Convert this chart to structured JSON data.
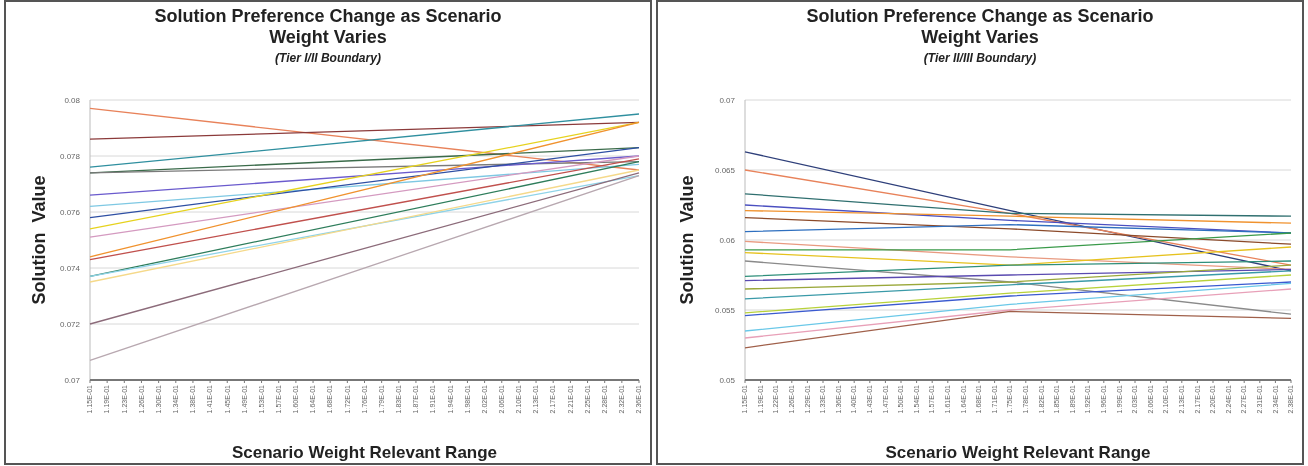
{
  "chart_data": [
    {
      "type": "line",
      "title": "Solution Preference Change as Scenario Weight Varies",
      "subtitle": "(Tier I/II Boundary)",
      "xlabel": "Scenario Weight Relevant Range",
      "ylabel": "Solution  Value",
      "xlim": [
        0.115,
        0.236
      ],
      "ylim": [
        0.07,
        0.08
      ],
      "yticks": [
        0.07,
        0.072,
        0.074,
        0.076,
        0.078,
        0.08
      ],
      "grid": "y",
      "xticks": [
        {
          "value": 0.115,
          "label": "1.15E-01"
        },
        {
          "value": 0.11878,
          "label": "1.19E-01"
        },
        {
          "value": 0.12256,
          "label": "1.23E-01"
        },
        {
          "value": 0.12634,
          "label": "1.26E-01"
        },
        {
          "value": 0.13013,
          "label": "1.30E-01"
        },
        {
          "value": 0.13391,
          "label": "1.34E-01"
        },
        {
          "value": 0.13769,
          "label": "1.38E-01"
        },
        {
          "value": 0.14147,
          "label": "1.41E-01"
        },
        {
          "value": 0.14525,
          "label": "1.45E-01"
        },
        {
          "value": 0.14903,
          "label": "1.49E-01"
        },
        {
          "value": 0.15281,
          "label": "1.53E-01"
        },
        {
          "value": 0.15659,
          "label": "1.57E-01"
        },
        {
          "value": 0.16038,
          "label": "1.60E-01"
        },
        {
          "value": 0.16416,
          "label": "1.64E-01"
        },
        {
          "value": 0.16794,
          "label": "1.68E-01"
        },
        {
          "value": 0.17172,
          "label": "1.72E-01"
        },
        {
          "value": 0.1755,
          "label": "1.76E-01"
        },
        {
          "value": 0.17928,
          "label": "1.79E-01"
        },
        {
          "value": 0.18306,
          "label": "1.83E-01"
        },
        {
          "value": 0.18684,
          "label": "1.87E-01"
        },
        {
          "value": 0.19063,
          "label": "1.91E-01"
        },
        {
          "value": 0.19441,
          "label": "1.94E-01"
        },
        {
          "value": 0.19819,
          "label": "1.98E-01"
        },
        {
          "value": 0.20197,
          "label": "2.02E-01"
        },
        {
          "value": 0.20575,
          "label": "2.06E-01"
        },
        {
          "value": 0.20953,
          "label": "2.10E-01"
        },
        {
          "value": 0.21331,
          "label": "2.13E-01"
        },
        {
          "value": 0.21709,
          "label": "2.17E-01"
        },
        {
          "value": 0.22088,
          "label": "2.21E-01"
        },
        {
          "value": 0.22466,
          "label": "2.25E-01"
        },
        {
          "value": 0.22844,
          "label": "2.28E-01"
        },
        {
          "value": 0.23222,
          "label": "2.32E-01"
        },
        {
          "value": 0.236,
          "label": "2.36E-01"
        }
      ],
      "series": [
        {
          "color": "#e8825a",
          "x": [
            0.115,
            0.236
          ],
          "values": [
            0.0797,
            0.0775
          ]
        },
        {
          "color": "#8b3a3a",
          "x": [
            0.115,
            0.236
          ],
          "values": [
            0.0786,
            0.0792
          ]
        },
        {
          "color": "#2f8f9f",
          "x": [
            0.115,
            0.236
          ],
          "values": [
            0.0776,
            0.0795
          ]
        },
        {
          "color": "#3a6b4a",
          "x": [
            0.115,
            0.236
          ],
          "values": [
            0.0774,
            0.0783
          ]
        },
        {
          "color": "#7a7a7a",
          "x": [
            0.115,
            0.236
          ],
          "values": [
            0.0774,
            0.0778
          ]
        },
        {
          "color": "#6a5acd",
          "x": [
            0.115,
            0.236
          ],
          "values": [
            0.0766,
            0.078
          ]
        },
        {
          "color": "#7ec8e3",
          "x": [
            0.115,
            0.236
          ],
          "values": [
            0.0762,
            0.0777
          ]
        },
        {
          "color": "#2e4fa3",
          "x": [
            0.115,
            0.236
          ],
          "values": [
            0.0758,
            0.0783
          ]
        },
        {
          "color": "#e6d21e",
          "x": [
            0.115,
            0.236
          ],
          "values": [
            0.0754,
            0.0792
          ]
        },
        {
          "color": "#d49ac0",
          "x": [
            0.115,
            0.236
          ],
          "values": [
            0.0751,
            0.078
          ]
        },
        {
          "color": "#f0922e",
          "x": [
            0.115,
            0.236
          ],
          "values": [
            0.0744,
            0.0792
          ]
        },
        {
          "color": "#c0504d",
          "x": [
            0.115,
            0.236
          ],
          "values": [
            0.0743,
            0.0779
          ]
        },
        {
          "color": "#2e7d5b",
          "x": [
            0.115,
            0.236
          ],
          "values": [
            0.0737,
            0.0778
          ]
        },
        {
          "color": "#8fd3e8",
          "x": [
            0.115,
            0.236
          ],
          "values": [
            0.0737,
            0.0773
          ]
        },
        {
          "color": "#f5d98a",
          "x": [
            0.115,
            0.236
          ],
          "values": [
            0.0735,
            0.0775
          ]
        },
        {
          "color": "#8c6b7a",
          "x": [
            0.115,
            0.236
          ],
          "values": [
            0.072,
            0.0774
          ]
        },
        {
          "color": "#b8a8b0",
          "x": [
            0.115,
            0.236
          ],
          "values": [
            0.0707,
            0.0773
          ]
        }
      ]
    },
    {
      "type": "line",
      "title": "Solution Preference Change as Scenario Weight Varies",
      "subtitle": "(Tier II/III Boundary)",
      "xlabel": "Scenario Weight Relevant Range",
      "ylabel": "Solution  Value",
      "xlim": [
        0.115,
        0.2375
      ],
      "ylim": [
        0.05,
        0.07
      ],
      "yticks": [
        0.05,
        0.055,
        0.06,
        0.065,
        0.07
      ],
      "grid": "y",
      "xticks": [
        {
          "value": 0.115,
          "label": "1.15E-01"
        },
        {
          "value": 0.1185,
          "label": "1.19E-01"
        },
        {
          "value": 0.122,
          "label": "1.22E-01"
        },
        {
          "value": 0.1255,
          "label": "1.26E-01"
        },
        {
          "value": 0.129,
          "label": "1.29E-01"
        },
        {
          "value": 0.1325,
          "label": "1.33E-01"
        },
        {
          "value": 0.136,
          "label": "1.36E-01"
        },
        {
          "value": 0.1395,
          "label": "1.40E-01"
        },
        {
          "value": 0.143,
          "label": "1.43E-01"
        },
        {
          "value": 0.1465,
          "label": "1.47E-01"
        },
        {
          "value": 0.15,
          "label": "1.50E-01"
        },
        {
          "value": 0.1535,
          "label": "1.54E-01"
        },
        {
          "value": 0.157,
          "label": "1.57E-01"
        },
        {
          "value": 0.1605,
          "label": "1.61E-01"
        },
        {
          "value": 0.164,
          "label": "1.64E-01"
        },
        {
          "value": 0.1675,
          "label": "1.68E-01"
        },
        {
          "value": 0.171,
          "label": "1.71E-01"
        },
        {
          "value": 0.1745,
          "label": "1.75E-01"
        },
        {
          "value": 0.178,
          "label": "1.78E-01"
        },
        {
          "value": 0.1815,
          "label": "1.82E-01"
        },
        {
          "value": 0.185,
          "label": "1.85E-01"
        },
        {
          "value": 0.1885,
          "label": "1.89E-01"
        },
        {
          "value": 0.192,
          "label": "1.92E-01"
        },
        {
          "value": 0.1955,
          "label": "1.96E-01"
        },
        {
          "value": 0.199,
          "label": "1.99E-01"
        },
        {
          "value": 0.2025,
          "label": "2.03E-01"
        },
        {
          "value": 0.206,
          "label": "2.06E-01"
        },
        {
          "value": 0.2095,
          "label": "2.10E-01"
        },
        {
          "value": 0.213,
          "label": "2.13E-01"
        },
        {
          "value": 0.2165,
          "label": "2.17E-01"
        },
        {
          "value": 0.22,
          "label": "2.20E-01"
        },
        {
          "value": 0.2235,
          "label": "2.24E-01"
        },
        {
          "value": 0.227,
          "label": "2.27E-01"
        },
        {
          "value": 0.2305,
          "label": "2.31E-01"
        },
        {
          "value": 0.234,
          "label": "2.34E-01"
        },
        {
          "value": 0.2375,
          "label": "2.38E-01"
        }
      ],
      "series": [
        {
          "color": "#2e3f7a",
          "x": [
            0.115,
            0.1745,
            0.2375
          ],
          "values": [
            0.0663,
            0.0621,
            0.0578
          ]
        },
        {
          "color": "#e8825a",
          "x": [
            0.115,
            0.1745,
            0.2375
          ],
          "values": [
            0.065,
            0.0619,
            0.0582
          ]
        },
        {
          "color": "#2f6f6f",
          "x": [
            0.115,
            0.1745,
            0.2375
          ],
          "values": [
            0.0633,
            0.0619,
            0.0617
          ]
        },
        {
          "color": "#4a4fc0",
          "x": [
            0.115,
            0.1745,
            0.2375
          ],
          "values": [
            0.0625,
            0.0614,
            0.0605
          ]
        },
        {
          "color": "#f0922e",
          "x": [
            0.115,
            0.1745,
            0.2375
          ],
          "values": [
            0.0621,
            0.0617,
            0.0612
          ]
        },
        {
          "color": "#8b4a2a",
          "x": [
            0.115,
            0.1745,
            0.2375
          ],
          "values": [
            0.0616,
            0.0608,
            0.0597
          ]
        },
        {
          "color": "#2e6fbf",
          "x": [
            0.115,
            0.1745,
            0.2375
          ],
          "values": [
            0.0606,
            0.0611,
            0.0605
          ]
        },
        {
          "color": "#e89a80",
          "x": [
            0.115,
            0.1745,
            0.2375
          ],
          "values": [
            0.0599,
            0.0588,
            0.0579
          ]
        },
        {
          "color": "#3a9a4a",
          "x": [
            0.115,
            0.1745,
            0.2375
          ],
          "values": [
            0.0593,
            0.0593,
            0.0605
          ]
        },
        {
          "color": "#e6c21e",
          "x": [
            0.115,
            0.1745,
            0.2375
          ],
          "values": [
            0.0591,
            0.0582,
            0.0595
          ]
        },
        {
          "color": "#8a8a8a",
          "x": [
            0.115,
            0.1745,
            0.2375
          ],
          "values": [
            0.0585,
            0.057,
            0.0547
          ]
        },
        {
          "color": "#2e8f7a",
          "x": [
            0.115,
            0.1745,
            0.2375
          ],
          "values": [
            0.0574,
            0.0582,
            0.0585
          ]
        },
        {
          "color": "#5a4ab0",
          "x": [
            0.115,
            0.1745,
            0.2375
          ],
          "values": [
            0.0571,
            0.0575,
            0.0579
          ]
        },
        {
          "color": "#9aa83a",
          "x": [
            0.115,
            0.1745,
            0.2375
          ],
          "values": [
            0.0565,
            0.057,
            0.0582
          ]
        },
        {
          "color": "#3a9aa8",
          "x": [
            0.115,
            0.1745,
            0.2375
          ],
          "values": [
            0.0558,
            0.0568,
            0.0578
          ]
        },
        {
          "color": "#b8d23a",
          "x": [
            0.115,
            0.1745,
            0.2375
          ],
          "values": [
            0.0548,
            0.0562,
            0.0575
          ]
        },
        {
          "color": "#3a5ad0",
          "x": [
            0.115,
            0.1745,
            0.2375
          ],
          "values": [
            0.0546,
            0.056,
            0.057
          ]
        },
        {
          "color": "#6ac8e8",
          "x": [
            0.115,
            0.1745,
            0.2375
          ],
          "values": [
            0.0535,
            0.0554,
            0.0569
          ]
        },
        {
          "color": "#e8a0b8",
          "x": [
            0.115,
            0.1745,
            0.2375
          ],
          "values": [
            0.053,
            0.055,
            0.0565
          ]
        },
        {
          "color": "#a0604a",
          "x": [
            0.115,
            0.1745,
            0.2375
          ],
          "values": [
            0.0523,
            0.0549,
            0.0544
          ]
        }
      ]
    }
  ]
}
